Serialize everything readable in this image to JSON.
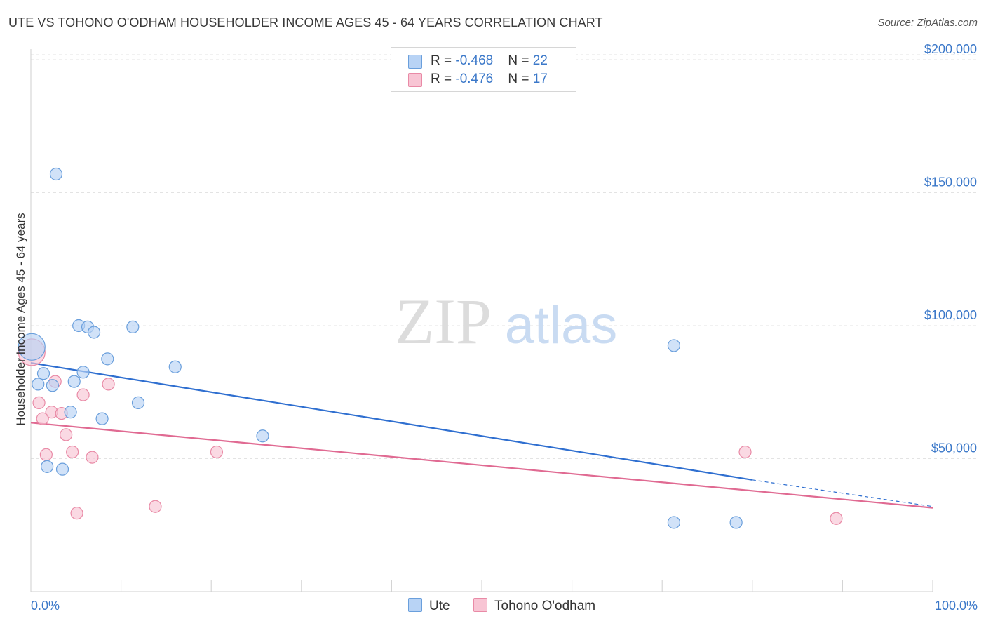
{
  "header": {
    "title": "UTE VS TOHONO O'ODHAM HOUSEHOLDER INCOME AGES 45 - 64 YEARS CORRELATION CHART",
    "source": "Source: ZipAtlas.com"
  },
  "legend": {
    "rows": [
      {
        "r_label": "R = ",
        "r_value": "-0.468",
        "n_label": "N = ",
        "n_value": "22"
      },
      {
        "r_label": "R = ",
        "r_value": "-0.476",
        "n_label": "N = ",
        "n_value": "17"
      }
    ]
  },
  "bottom_legend": {
    "ute": "Ute",
    "tohono": "Tohono O'odham"
  },
  "x_axis": {
    "min_label": "0.0%",
    "max_label": "100.0%"
  },
  "watermark": {
    "zip": "ZIP",
    "atlas": "atlas"
  },
  "colors": {
    "ute_fill": "#b8d3f5",
    "ute_stroke": "#6a9fdc",
    "ute_line": "#2f6fd0",
    "tohono_fill": "#f8c5d4",
    "tohono_stroke": "#e98aa6",
    "tohono_line": "#e06a92",
    "tick_label": "#3b78c9",
    "grid": "#e3e3e3"
  },
  "chart_data": {
    "type": "scatter",
    "title": "UTE VS TOHONO O'ODHAM HOUSEHOLDER INCOME AGES 45 - 64 YEARS CORRELATION CHART",
    "xlabel": "",
    "ylabel": "Householder Income Ages 45 - 64 years",
    "xlim": [
      0,
      100
    ],
    "ylim": [
      0,
      205000
    ],
    "y_ticks": [
      50000,
      100000,
      150000,
      200000
    ],
    "y_tick_labels": [
      "$50,000",
      "$100,000",
      "$150,000",
      "$200,000"
    ],
    "grid": true,
    "legend_position": "top-center",
    "series": [
      {
        "name": "Ute",
        "color": "#6a9fdc",
        "points": [
          {
            "x": 0.1,
            "y": 92000,
            "big": true
          },
          {
            "x": 2.8,
            "y": 157000
          },
          {
            "x": 5.3,
            "y": 100000
          },
          {
            "x": 6.3,
            "y": 99500
          },
          {
            "x": 7.0,
            "y": 97500
          },
          {
            "x": 11.3,
            "y": 99500
          },
          {
            "x": 8.5,
            "y": 87500
          },
          {
            "x": 16.0,
            "y": 84500
          },
          {
            "x": 71.3,
            "y": 92500
          },
          {
            "x": 1.4,
            "y": 82000
          },
          {
            "x": 0.8,
            "y": 78000
          },
          {
            "x": 2.4,
            "y": 77500
          },
          {
            "x": 5.8,
            "y": 82500
          },
          {
            "x": 4.8,
            "y": 79000
          },
          {
            "x": 11.9,
            "y": 71000
          },
          {
            "x": 4.4,
            "y": 67500
          },
          {
            "x": 7.9,
            "y": 65000
          },
          {
            "x": 25.7,
            "y": 58500
          },
          {
            "x": 1.8,
            "y": 47000
          },
          {
            "x": 3.5,
            "y": 46000
          },
          {
            "x": 71.3,
            "y": 26000
          },
          {
            "x": 78.2,
            "y": 26000
          }
        ],
        "trend": {
          "x0": 0,
          "y0": 86000,
          "x1": 80,
          "y1": 42000,
          "dash_x_end": 100,
          "dash_y_end": 32000
        }
      },
      {
        "name": "Tohono O'odham",
        "color": "#e98aa6",
        "points": [
          {
            "x": 0.1,
            "y": 90000,
            "big": true
          },
          {
            "x": 2.7,
            "y": 79000
          },
          {
            "x": 8.6,
            "y": 78000
          },
          {
            "x": 5.8,
            "y": 74000
          },
          {
            "x": 0.9,
            "y": 71000
          },
          {
            "x": 2.3,
            "y": 67500
          },
          {
            "x": 3.4,
            "y": 67000
          },
          {
            "x": 1.3,
            "y": 65000
          },
          {
            "x": 3.9,
            "y": 59000
          },
          {
            "x": 1.7,
            "y": 51500
          },
          {
            "x": 4.6,
            "y": 52500
          },
          {
            "x": 6.8,
            "y": 50500
          },
          {
            "x": 20.6,
            "y": 52500
          },
          {
            "x": 79.2,
            "y": 52500
          },
          {
            "x": 5.1,
            "y": 29500
          },
          {
            "x": 13.8,
            "y": 32000
          },
          {
            "x": 89.3,
            "y": 27500
          }
        ],
        "trend": {
          "x0": 0,
          "y0": 63500,
          "x1": 100,
          "y1": 31500
        }
      }
    ]
  }
}
